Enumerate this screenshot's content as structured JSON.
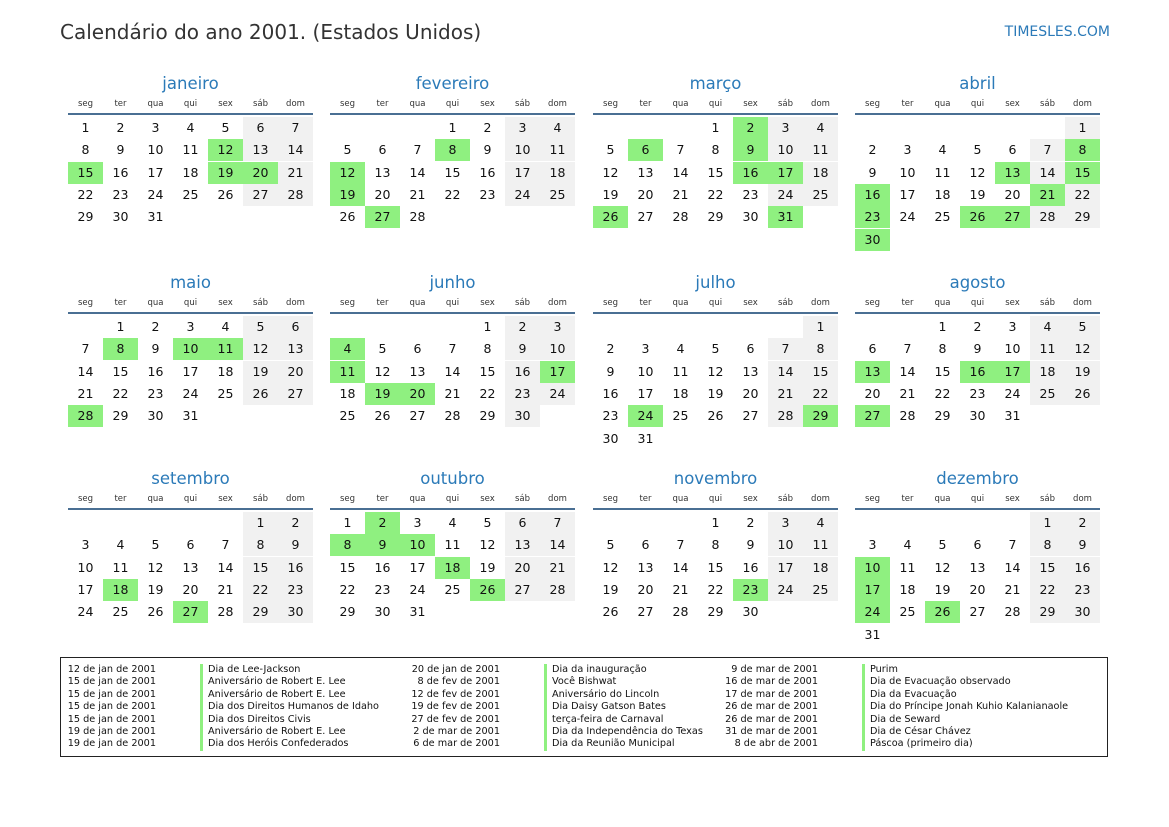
{
  "header": {
    "title": "Calendário do ano 2001. (Estados Unidos)",
    "brand": "TIMESLES.COM"
  },
  "weekday_labels": [
    "seg",
    "ter",
    "qua",
    "qui",
    "sex",
    "sáb",
    "dom"
  ],
  "months": [
    {
      "name": "janeiro",
      "days": 31,
      "offset": 0,
      "holidays": [
        12,
        15,
        19,
        20
      ]
    },
    {
      "name": "fevereiro",
      "days": 28,
      "offset": 3,
      "holidays": [
        8,
        12,
        19,
        27
      ]
    },
    {
      "name": "março",
      "days": 31,
      "offset": 3,
      "holidays": [
        2,
        6,
        9,
        16,
        17,
        26,
        31
      ]
    },
    {
      "name": "abril",
      "days": 30,
      "offset": 6,
      "holidays": [
        8,
        13,
        15,
        16,
        21,
        23,
        26,
        27,
        30
      ]
    },
    {
      "name": "maio",
      "days": 31,
      "offset": 1,
      "holidays": [
        8,
        10,
        11,
        28
      ]
    },
    {
      "name": "junho",
      "days": 30,
      "offset": 4,
      "holidays": [
        4,
        11,
        17,
        19,
        20
      ]
    },
    {
      "name": "julho",
      "days": 31,
      "offset": 6,
      "holidays": [
        24,
        29
      ]
    },
    {
      "name": "agosto",
      "days": 31,
      "offset": 2,
      "holidays": [
        13,
        16,
        17,
        27
      ]
    },
    {
      "name": "setembro",
      "days": 30,
      "offset": 5,
      "holidays": [
        18,
        27
      ]
    },
    {
      "name": "outubro",
      "days": 31,
      "offset": 0,
      "holidays": [
        2,
        8,
        9,
        10,
        18,
        26
      ]
    },
    {
      "name": "novembro",
      "days": 30,
      "offset": 3,
      "holidays": [
        23
      ]
    },
    {
      "name": "dezembro",
      "days": 31,
      "offset": 5,
      "holidays": [
        10,
        17,
        24,
        26
      ]
    }
  ],
  "legend": [
    [
      {
        "date": "12 de jan de 2001",
        "name": "Dia de Lee-Jackson"
      },
      {
        "date": "15 de jan de 2001",
        "name": "Aniversário de Robert E. Lee"
      },
      {
        "date": "15 de jan de 2001",
        "name": "Aniversário de Robert E. Lee"
      },
      {
        "date": "15 de jan de 2001",
        "name": "Dia dos Direitos Humanos de Idaho"
      },
      {
        "date": "15 de jan de 2001",
        "name": "Dia dos Direitos Civis"
      },
      {
        "date": "19 de jan de 2001",
        "name": "Aniversário de Robert E. Lee"
      },
      {
        "date": "19 de jan de 2001",
        "name": "Dia dos Heróis Confederados"
      }
    ],
    [
      {
        "date": "20 de jan de 2001",
        "name": "Dia da inauguração"
      },
      {
        "date": "8 de fev de 2001",
        "name": "Você Bishwat"
      },
      {
        "date": "12 de fev de 2001",
        "name": "Aniversário do Lincoln"
      },
      {
        "date": "19 de fev de 2001",
        "name": "Dia Daisy Gatson Bates"
      },
      {
        "date": "27 de fev de 2001",
        "name": "terça-feira de Carnaval"
      },
      {
        "date": "2 de mar de 2001",
        "name": "Dia da Independência do Texas"
      },
      {
        "date": "6 de mar de 2001",
        "name": "Dia da Reunião Municipal"
      }
    ],
    [
      {
        "date": "9 de mar de 2001",
        "name": "Purim"
      },
      {
        "date": "16 de mar de 2001",
        "name": "Dia de Evacuação observado"
      },
      {
        "date": "17 de mar de 2001",
        "name": "Dia da Evacuação"
      },
      {
        "date": "26 de mar de 2001",
        "name": "Dia do Príncipe Jonah Kuhio Kalanianaole"
      },
      {
        "date": "26 de mar de 2001",
        "name": "Dia de Seward"
      },
      {
        "date": "31 de mar de 2001",
        "name": "Dia de César Chávez"
      },
      {
        "date": "8 de abr de 2001",
        "name": "Páscoa (primeiro dia)"
      }
    ]
  ]
}
